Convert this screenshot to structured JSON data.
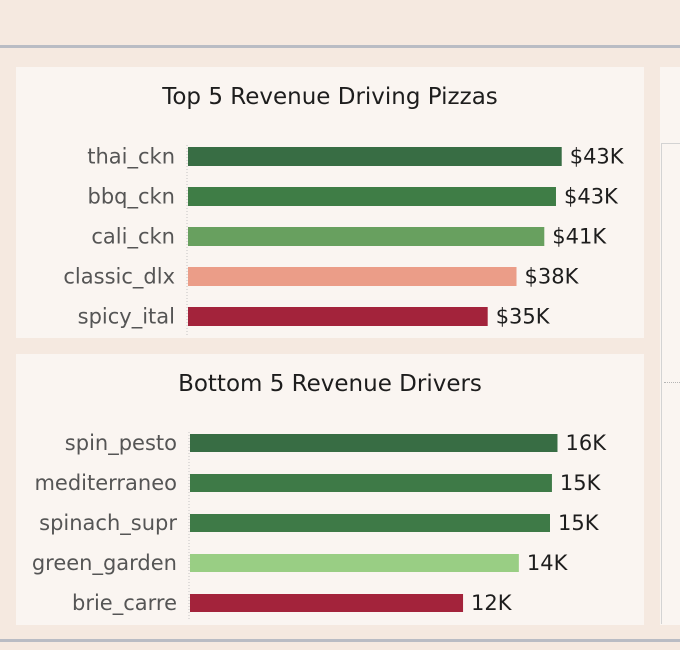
{
  "chart_data": [
    {
      "type": "bar",
      "orientation": "horizontal",
      "title": "Top 5 Revenue Driving Pizzas",
      "categories": [
        "thai_ckn",
        "bbq_ckn",
        "cali_ckn",
        "classic_dlx",
        "spicy_ital"
      ],
      "values": [
        43434,
        42768,
        41410,
        38180,
        34831
      ],
      "value_labels": [
        "$43K",
        "$43K",
        "$41K",
        "$38K",
        "$35K"
      ],
      "colors": [
        "#386d44",
        "#3f7d46",
        "#68a05f",
        "#eb9d88",
        "#a3233b"
      ],
      "xlim": [
        0,
        48000
      ],
      "grid": false,
      "legend": "none"
    },
    {
      "type": "bar",
      "orientation": "horizontal",
      "title": "Bottom 5 Revenue Drivers",
      "categories": [
        "spin_pesto",
        "mediterraneo",
        "spinach_supr",
        "green_garden",
        "brie_carre"
      ],
      "values": [
        15596,
        15360,
        15278,
        13956,
        11588
      ],
      "value_labels": [
        "16K",
        "15K",
        "15K",
        "14K",
        "12K"
      ],
      "colors": [
        "#386d44",
        "#3e7a47",
        "#3e7a47",
        "#99ce84",
        "#a3233b"
      ],
      "xlim": [
        0,
        17400
      ],
      "grid": false,
      "legend": "none"
    }
  ]
}
